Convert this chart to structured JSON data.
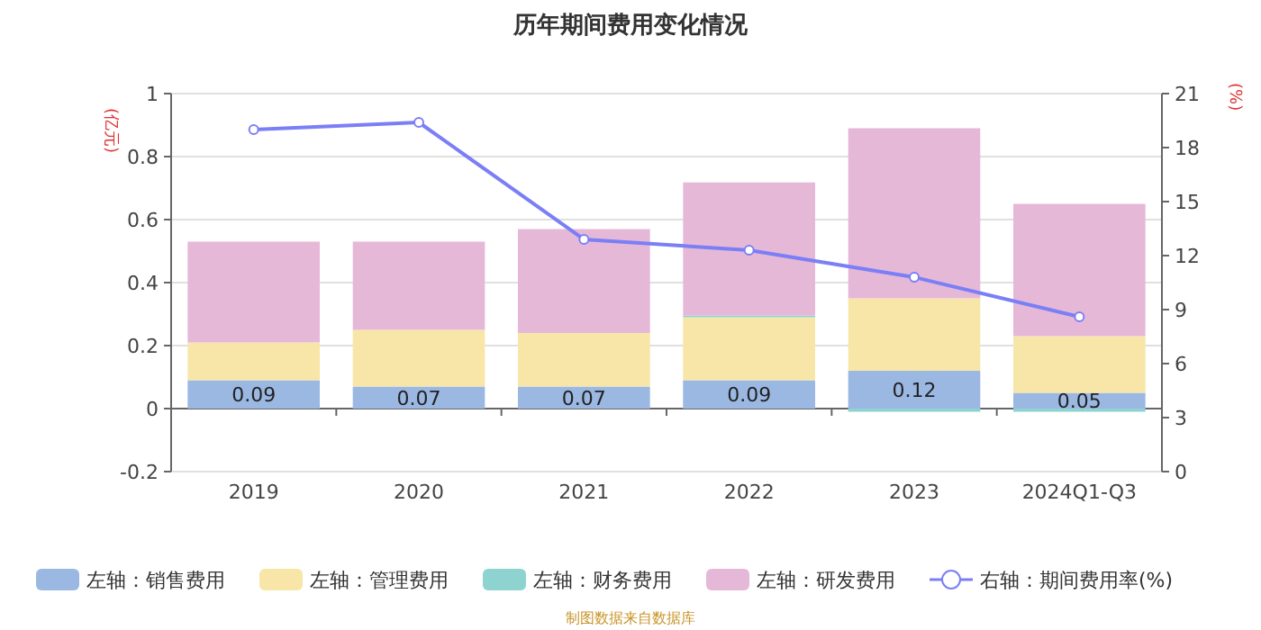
{
  "chart_data": {
    "type": "bar",
    "title": "历年期间费用变化情况",
    "ylabel": "(亿元)",
    "y2label": "(%)",
    "categories": [
      "2019",
      "2020",
      "2021",
      "2022",
      "2023",
      "2024Q1-Q3"
    ],
    "stacked": true,
    "series": [
      {
        "name": "左轴：销售费用",
        "color": "#9bb8e3",
        "values": [
          0.09,
          0.07,
          0.07,
          0.09,
          0.12,
          0.05
        ],
        "value_labels": [
          "0.09",
          "0.07",
          "0.07",
          "0.09",
          "0.12",
          "0.05"
        ]
      },
      {
        "name": "左轴：管理费用",
        "color": "#f7e6a8",
        "values": [
          0.12,
          0.18,
          0.17,
          0.2,
          0.23,
          0.18
        ]
      },
      {
        "name": "左轴：财务费用",
        "color": "#8fd3d0",
        "values": [
          0,
          0,
          0,
          0.005,
          -0.01,
          -0.01
        ]
      },
      {
        "name": "左轴：研发费用",
        "color": "#e6b8d8",
        "values": [
          0.32,
          0.28,
          0.33,
          0.423,
          0.54,
          0.42
        ]
      },
      {
        "name": "右轴：期间费用率(%)",
        "type": "line",
        "axis": "y2",
        "color": "#7b7ff5",
        "marker": "circle",
        "values": [
          19.0,
          19.4,
          12.9,
          12.3,
          10.8,
          8.6
        ]
      }
    ],
    "ylim": [
      -0.2,
      1
    ],
    "yticks": [
      -0.2,
      0,
      0.2,
      0.4,
      0.6,
      0.8,
      1
    ],
    "y2lim": [
      0,
      21
    ],
    "y2ticks": [
      0,
      3,
      6,
      9,
      12,
      15,
      18,
      21
    ],
    "grid": "y",
    "legend": "bottom",
    "annotations": [
      "制图数据来自数据库"
    ]
  }
}
